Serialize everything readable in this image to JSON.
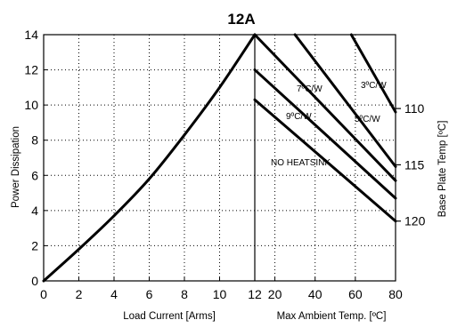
{
  "chart_data": {
    "type": "line",
    "title": "12A",
    "ylabel": "Power Dissipation",
    "ylim": [
      0,
      14
    ],
    "yticks": [
      0,
      2,
      4,
      6,
      8,
      10,
      12,
      14
    ],
    "left_panel": {
      "xlabel": "Load Current  [Arms]",
      "xlim": [
        0,
        12
      ],
      "xticks": [
        0,
        2,
        4,
        6,
        8,
        10,
        12
      ],
      "series": [
        {
          "x": [
            0,
            2,
            4,
            6,
            8,
            10,
            12
          ],
          "y": [
            0,
            1.8,
            3.7,
            5.8,
            8.3,
            11.0,
            14.0
          ]
        }
      ]
    },
    "right_panel": {
      "xlabel": "Max Ambient Temp. [ºC]",
      "xticks": [
        "12",
        "20",
        "40",
        "60",
        "80"
      ],
      "xlim": [
        10,
        80
      ],
      "series": [
        {
          "name": "NO HEATSINK",
          "x": [
            10,
            80
          ],
          "y": [
            10.3,
            3.4
          ]
        },
        {
          "name": "9ºC/W",
          "x": [
            10,
            80
          ],
          "y": [
            12.0,
            4.7
          ]
        },
        {
          "name": "7ºC/W",
          "x": [
            10,
            80
          ],
          "y": [
            14.0,
            5.7
          ]
        },
        {
          "name": "5ºC/W",
          "x": [
            30,
            80
          ],
          "y": [
            14.0,
            6.5
          ]
        },
        {
          "name": "3ºC/W",
          "x": [
            58,
            80
          ],
          "y": [
            14.0,
            9.6
          ]
        }
      ]
    },
    "secondary_ylabel": "Base Plate Temp [ºC]",
    "secondary_yticks": [
      {
        "label": "110",
        "at_power": 9.8
      },
      {
        "label": "115",
        "at_power": 6.6
      },
      {
        "label": "120",
        "at_power": 3.4
      }
    ],
    "grid": true
  }
}
